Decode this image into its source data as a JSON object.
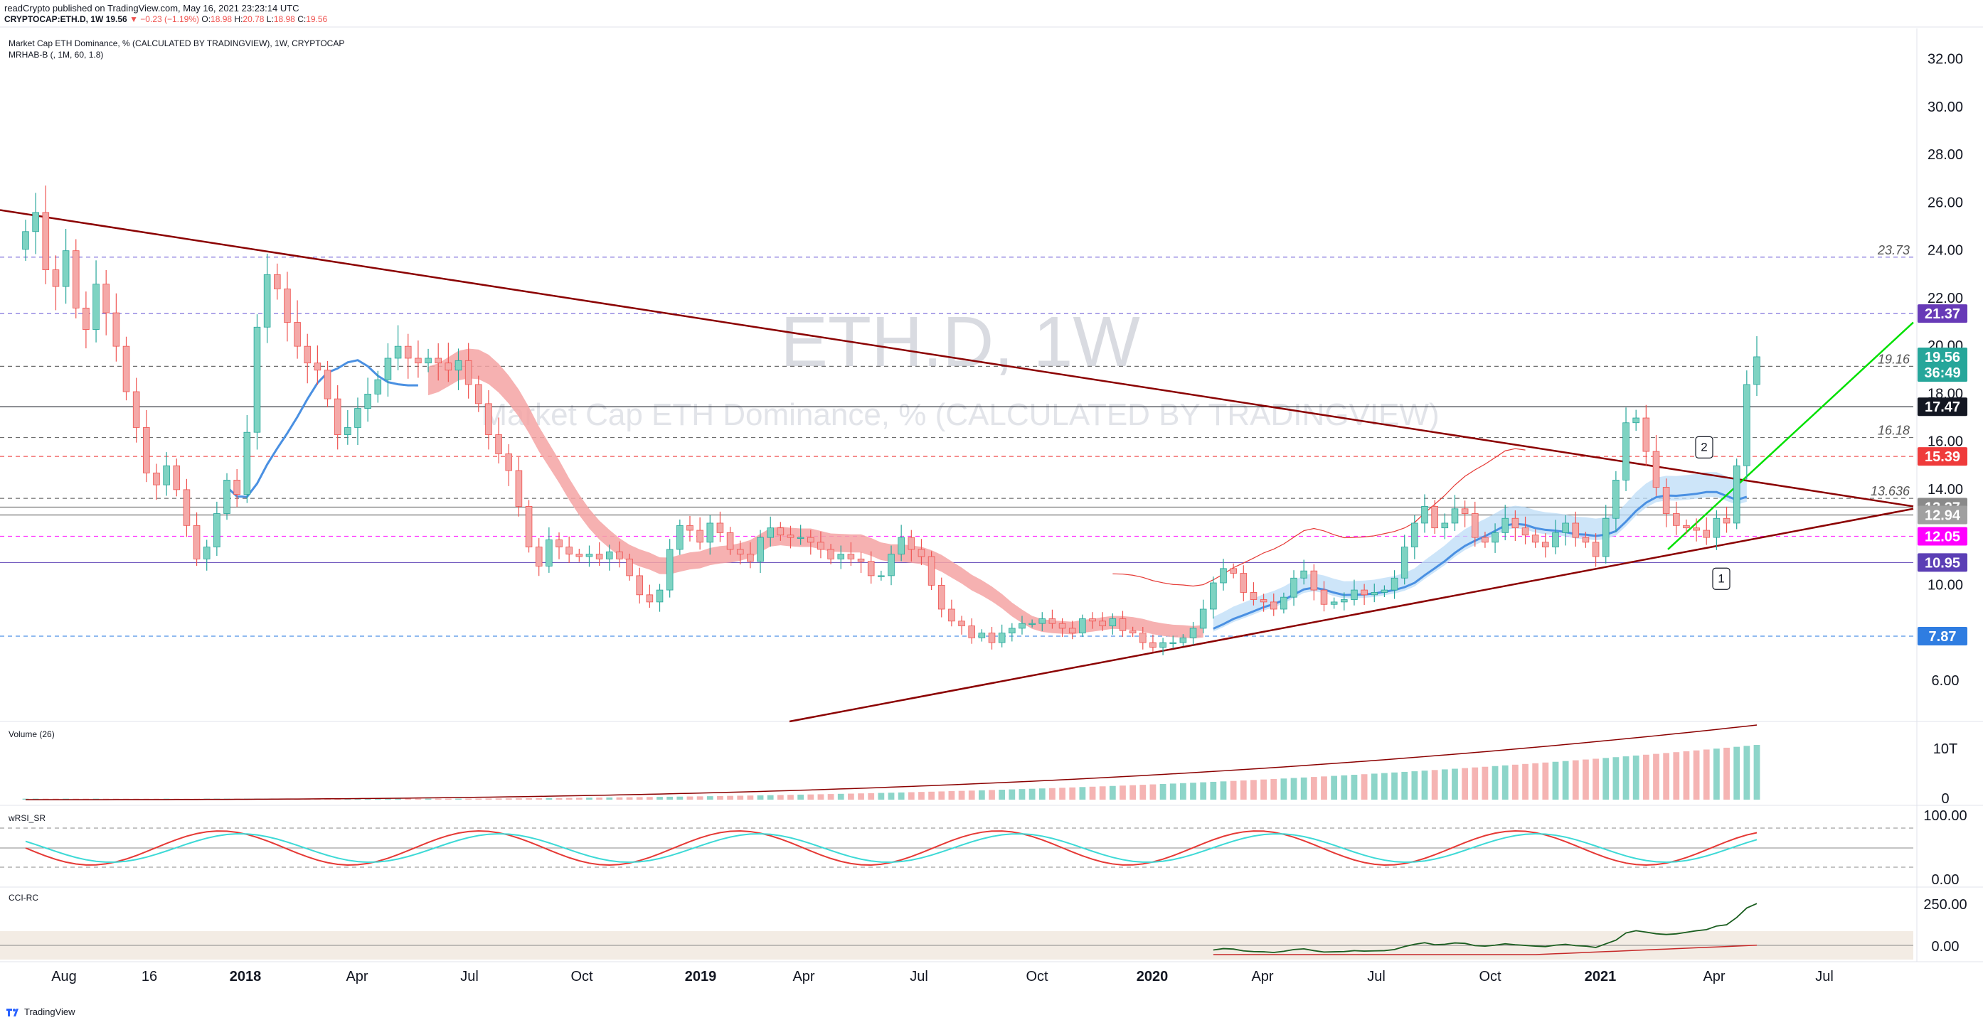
{
  "header": {
    "published_by": "readCrypto published on TradingView.com, May 16, 2021 23:23:14 UTC",
    "symbol": "CRYPTOCAP:ETH.D, 1W",
    "last": "19.56",
    "change": "−0.23 (−1.19%)",
    "o_label": "O:",
    "o_value": "18.98",
    "h_label": "H:",
    "h_value": "20.78",
    "l_label": "L:",
    "l_value": "18.98",
    "c_label": "C:",
    "c_value": "19.56"
  },
  "main_pane": {
    "title": "Market Cap ETH Dominance, % (CALCULATED BY TRADINGVIEW), 1W, CRYPTOCAP",
    "indicator": "MRHAB-B (, 1M, 60, 1.8)",
    "watermark_symbol": "ETH.D, 1W",
    "watermark_desc": "Market Cap ETH Dominance, % (CALCULATED BY TRADINGVIEW)"
  },
  "panes": {
    "volume_label": "Volume (26)",
    "rsi_label": "wRSI_SR",
    "cci_label": "CCI-RC"
  },
  "footer": {
    "brand": "TradingView"
  },
  "colors": {
    "up": "#26a69a",
    "down": "#ef5350",
    "trend": "#8b0000",
    "green_line": "#00e000",
    "blue_band": "#4a90e2",
    "price_badge": "#26a69a"
  },
  "chart_data": [
    {
      "type": "line",
      "title": "ETH.D, 1W",
      "x_ticks": [
        "Aug",
        "16",
        "2018",
        "Apr",
        "Jul",
        "Oct",
        "2019",
        "Apr",
        "Jul",
        "Oct",
        "2020",
        "Apr",
        "Jul",
        "Oct",
        "2021",
        "Apr",
        "Jul"
      ],
      "y_ticks": [
        "32.00",
        "30.00",
        "28.00",
        "26.00",
        "24.00",
        "22.00",
        "20.00",
        "18.00",
        "16.00",
        "14.00",
        "12.00",
        "10.00",
        "6.00"
      ],
      "ylim": [
        4.3,
        33.3
      ],
      "close_series": [
        24.8,
        25.6,
        23.2,
        22.5,
        24.0,
        21.6,
        20.7,
        22.6,
        21.4,
        20.0,
        18.1,
        16.6,
        14.7,
        14.2,
        15.0,
        14.0,
        12.5,
        11.1,
        11.6,
        13.0,
        14.4,
        13.8,
        16.4,
        20.8,
        23.0,
        22.4,
        21.0,
        20.0,
        19.3,
        19.0,
        17.8,
        16.3,
        16.6,
        17.4,
        18.0,
        18.6,
        19.5,
        20.0,
        19.5,
        19.3,
        19.5,
        19.3,
        19.0,
        19.4,
        18.4,
        17.6,
        16.3,
        15.5,
        14.8,
        13.3,
        11.6,
        10.8,
        11.9,
        11.6,
        11.3,
        11.2,
        11.3,
        11.1,
        11.4,
        11.1,
        10.4,
        9.6,
        9.3,
        9.8,
        11.5,
        12.5,
        12.3,
        11.8,
        12.6,
        12.2,
        11.5,
        11.3,
        11.0,
        12.0,
        12.4,
        12.1,
        12.0,
        12.0,
        11.8,
        11.5,
        11.1,
        11.3,
        11.1,
        11.0,
        10.4,
        10.4,
        11.3,
        12.0,
        11.5,
        11.2,
        10.0,
        9.0,
        8.5,
        8.3,
        7.8,
        8.0,
        7.6,
        8.0,
        8.2,
        8.4,
        8.4,
        8.6,
        8.4,
        8.2,
        8.0,
        8.6,
        8.5,
        8.3,
        8.6,
        8.1,
        8.0,
        7.6,
        7.4,
        7.6,
        7.6,
        7.8,
        8.2,
        9.0,
        10.1,
        10.7,
        10.5,
        9.7,
        9.4,
        9.3,
        9.0,
        9.5,
        10.3,
        10.6,
        9.8,
        9.2,
        9.3,
        9.4,
        9.8,
        9.6,
        9.7,
        9.8,
        10.3,
        11.6,
        12.6,
        13.3,
        12.4,
        12.6,
        13.2,
        13.0,
        12.0,
        11.8,
        12.2,
        12.8,
        12.4,
        12.1,
        11.8,
        11.6,
        12.2,
        12.6,
        12.0,
        11.8,
        11.2,
        12.8,
        14.4,
        16.8,
        17.0,
        15.6,
        14.1,
        13.0,
        12.5,
        12.4,
        12.3,
        12.0,
        12.8,
        12.6,
        15.0,
        18.4,
        19.56
      ],
      "horizontal_levels": [
        {
          "label": "23.73",
          "value": 23.73,
          "style": "dashed"
        },
        {
          "label": "21.37",
          "value": 21.37,
          "style": "dashed"
        },
        {
          "label": "19.16",
          "value": 19.16,
          "style": "dashed"
        },
        {
          "label": "17.47",
          "value": 17.47,
          "style": "solid"
        },
        {
          "label": "16.18",
          "value": 16.18,
          "style": "dashed"
        },
        {
          "label": "15.39",
          "value": 15.39,
          "style": "dashed"
        },
        {
          "label": "13.636",
          "value": 13.636,
          "style": "dashed"
        },
        {
          "label": "13.27",
          "value": 13.27,
          "style": "solid"
        },
        {
          "label": "12.94",
          "value": 12.94,
          "style": "solid"
        },
        {
          "label": "12.05",
          "value": 12.05,
          "style": "dashed"
        },
        {
          "label": "10.95",
          "value": 10.95,
          "style": "solid"
        },
        {
          "label": "7.87",
          "value": 7.87,
          "style": "dashed"
        }
      ],
      "price_badges": [
        {
          "label": "21.37",
          "value": 21.37,
          "color": "#673ab7"
        },
        {
          "label": "19.56",
          "value": 19.56,
          "color": "#26a69a"
        },
        {
          "label": "36:49",
          "value": 18.9,
          "color": "#26a69a"
        },
        {
          "label": "17.47",
          "value": 17.47,
          "color": "#131722"
        },
        {
          "label": "15.39",
          "value": 15.39,
          "color": "#ef3b3b"
        },
        {
          "label": "13.27",
          "value": 13.27,
          "color": "#8a8a8a"
        },
        {
          "label": "12.94",
          "value": 12.94,
          "color": "#a0a0a0"
        },
        {
          "label": "12.05",
          "value": 12.05,
          "color": "#ff00ff"
        },
        {
          "label": "10.95",
          "value": 10.95,
          "color": "#5b3fb5"
        },
        {
          "label": "7.87",
          "value": 7.87,
          "color": "#2f7de1"
        }
      ],
      "callouts": [
        "1",
        "2"
      ]
    },
    {
      "type": "bar",
      "title": "Volume (26)",
      "y_ticks": [
        "10T",
        "0"
      ]
    },
    {
      "type": "line",
      "title": "wRSI_SR",
      "y_ticks": [
        "100.00",
        "0.00"
      ]
    },
    {
      "type": "line",
      "title": "CCI-RC",
      "y_ticks": [
        "250.00",
        "0.00"
      ]
    }
  ]
}
